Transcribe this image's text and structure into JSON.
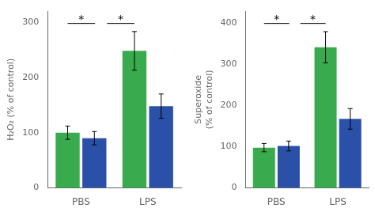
{
  "chart_data": [
    {
      "type": "bar",
      "ylabel": "H₂O₂ (% of control)",
      "categories": [
        "PBS",
        "LPS"
      ],
      "series": [
        {
          "color": "#3aaa4e",
          "values": [
            100,
            248
          ],
          "errors": [
            12,
            35
          ]
        },
        {
          "color": "#2b50a8",
          "values": [
            90,
            148
          ],
          "errors": [
            12,
            22
          ]
        }
      ],
      "ylim": [
        0,
        320
      ],
      "yticks": [
        0,
        100,
        200,
        300
      ],
      "grid": false,
      "annotations": [
        "*",
        "*"
      ]
    },
    {
      "type": "bar",
      "ylabel": "Superoxide\n(% of control)",
      "categories": [
        "PBS",
        "LPS"
      ],
      "series": [
        {
          "color": "#3aaa4e",
          "values": [
            98,
            342
          ],
          "errors": [
            10,
            38
          ]
        },
        {
          "color": "#2b50a8",
          "values": [
            102,
            168
          ],
          "errors": [
            12,
            25
          ]
        }
      ],
      "ylim": [
        0,
        430
      ],
      "yticks": [
        0,
        100,
        200,
        300,
        400
      ],
      "grid": false,
      "annotations": [
        "*",
        "*"
      ]
    }
  ]
}
